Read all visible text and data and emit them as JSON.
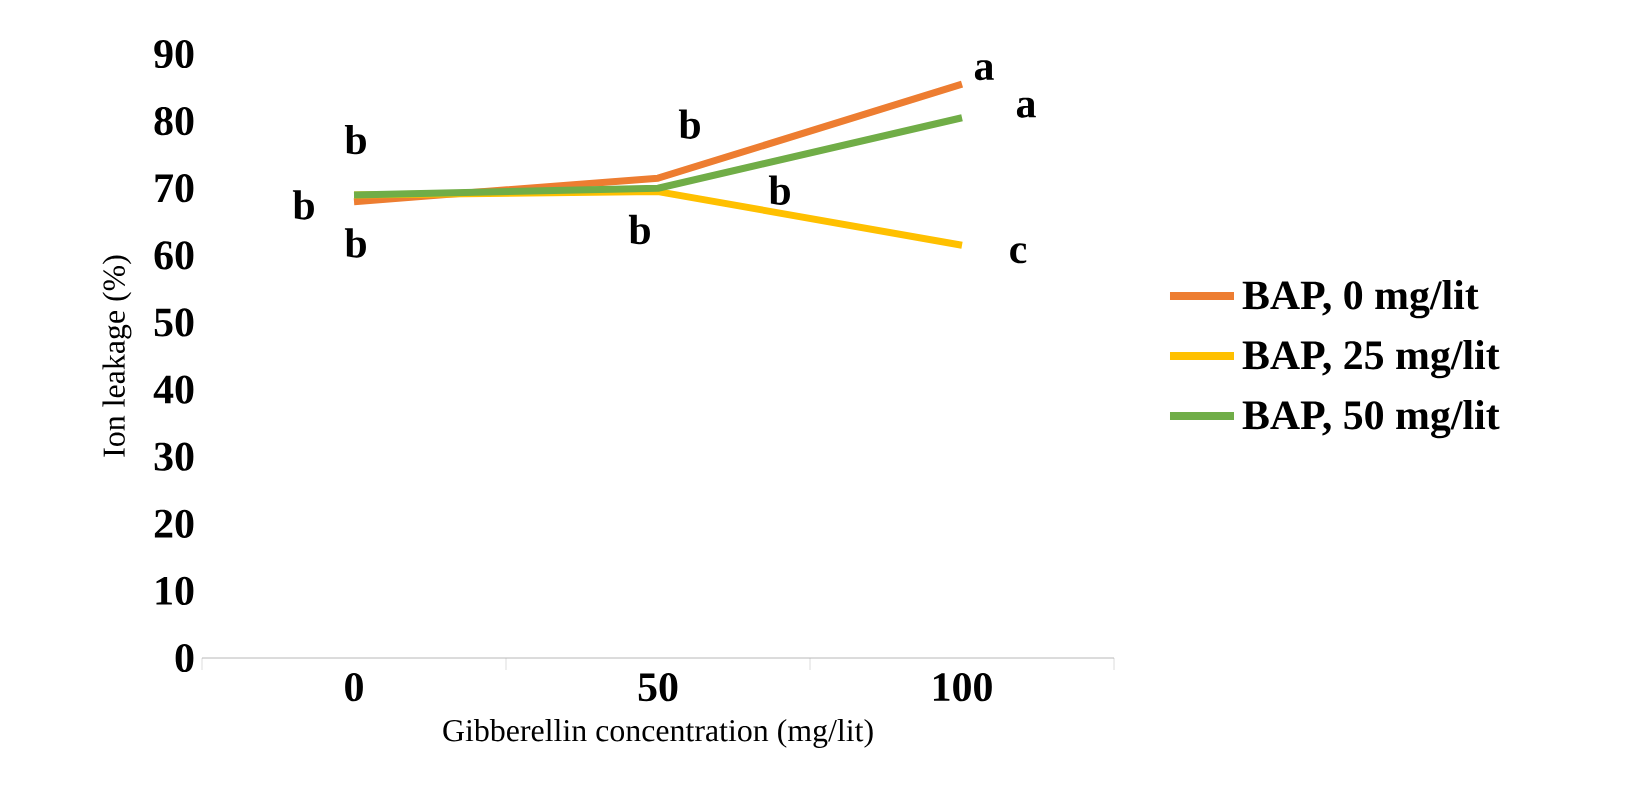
{
  "chart_data": {
    "type": "line",
    "xlabel": "Gibberellin concentration (mg/lit)",
    "ylabel": "Ion leakage (%)",
    "categories": [
      "0",
      "50",
      "100"
    ],
    "series": [
      {
        "name": "BAP, 0 mg/lit",
        "color": "#ed7d31",
        "values": [
          68,
          71.5,
          85.5
        ]
      },
      {
        "name": "BAP, 25 mg/lit",
        "color": "#ffc000",
        "values": [
          69,
          69.5,
          61.5
        ]
      },
      {
        "name": "BAP, 50 mg/lit",
        "color": "#70ad47",
        "values": [
          69,
          70,
          80.5
        ]
      }
    ],
    "ylim": [
      0,
      90
    ],
    "yticks": [
      0,
      10,
      20,
      30,
      40,
      50,
      60,
      70,
      80,
      90
    ],
    "grid": false,
    "legend": "right",
    "marker": "none",
    "line_style": "solid",
    "annotations": [
      {
        "text": "b",
        "x": "0",
        "y": 68
      },
      {
        "text": "b",
        "x": "0",
        "y": 69
      },
      {
        "text": "b",
        "x": "0",
        "y": 69
      },
      {
        "text": "b",
        "x": "50",
        "y": 71.5
      },
      {
        "text": "b",
        "x": "50",
        "y": 69.5
      },
      {
        "text": "b",
        "x": "50",
        "y": 70
      },
      {
        "text": "a",
        "x": "100",
        "y": 85.5
      },
      {
        "text": "a",
        "x": "100",
        "y": 80.5
      },
      {
        "text": "c",
        "x": "100",
        "y": 61.5
      }
    ]
  }
}
